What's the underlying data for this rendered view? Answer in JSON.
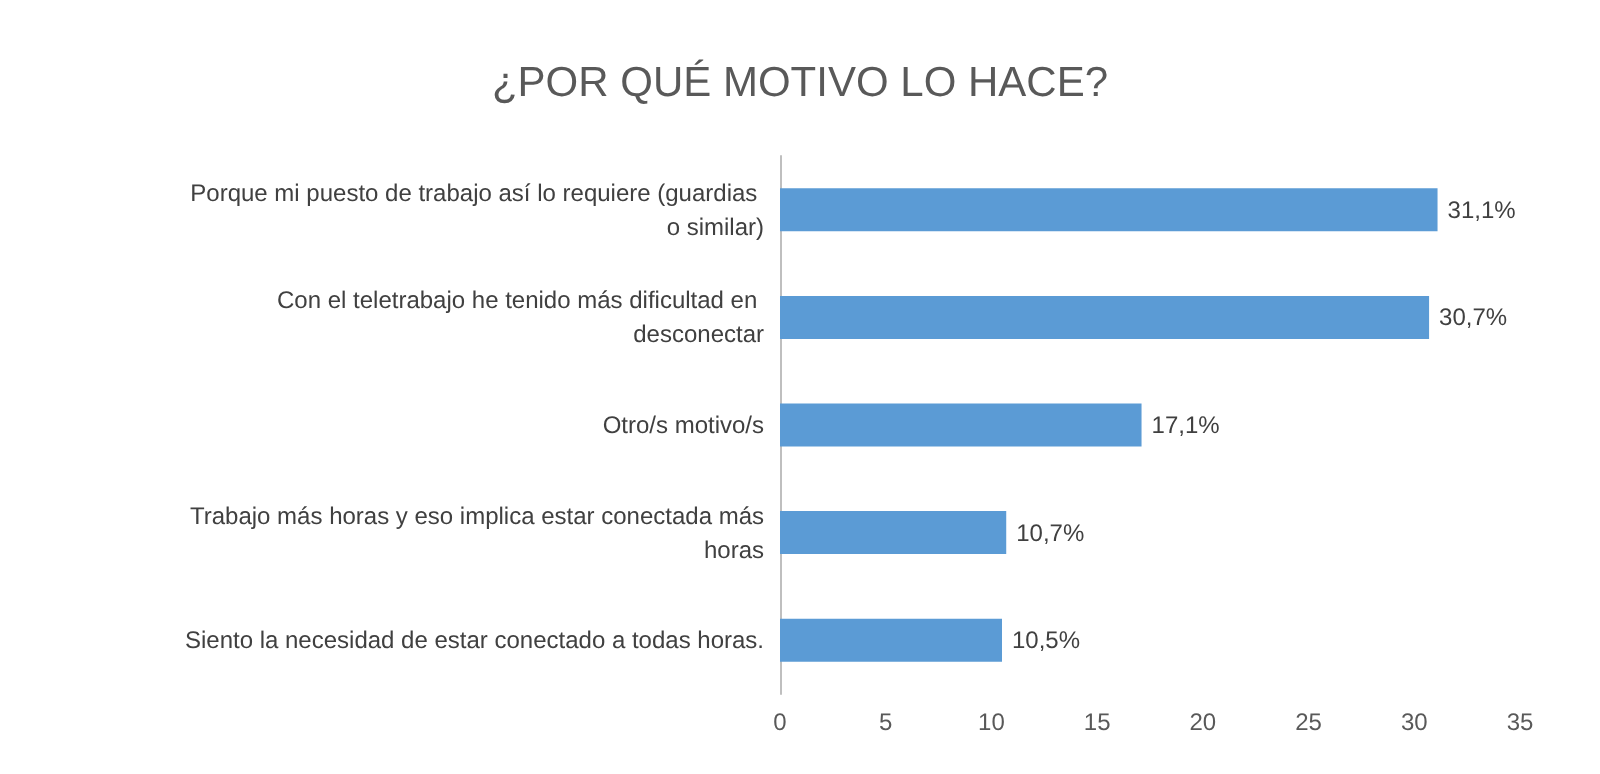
{
  "chart_data": {
    "type": "bar",
    "orientation": "horizontal",
    "title": "¿POR QUÉ MOTIVO LO HACE?",
    "categories": [
      "Porque mi puesto de trabajo así lo requiere (guardias o similar)",
      "Con el teletrabajo he tenido más dificultad en desconectar",
      "Otro/s motivo/s",
      "Trabajo más horas y eso implica estar conectada más horas",
      "Siento la necesidad de estar conectado a todas horas."
    ],
    "values": [
      31.1,
      30.7,
      17.1,
      10.7,
      10.5
    ],
    "value_labels": [
      "31,1%",
      "30,7%",
      "17,1%",
      "10,7%",
      "10,5%"
    ],
    "color": "#5b9bd5",
    "xlim": [
      0,
      35
    ],
    "xticks": [
      0,
      5,
      10,
      15,
      20,
      25,
      30,
      35
    ],
    "grid": false
  }
}
